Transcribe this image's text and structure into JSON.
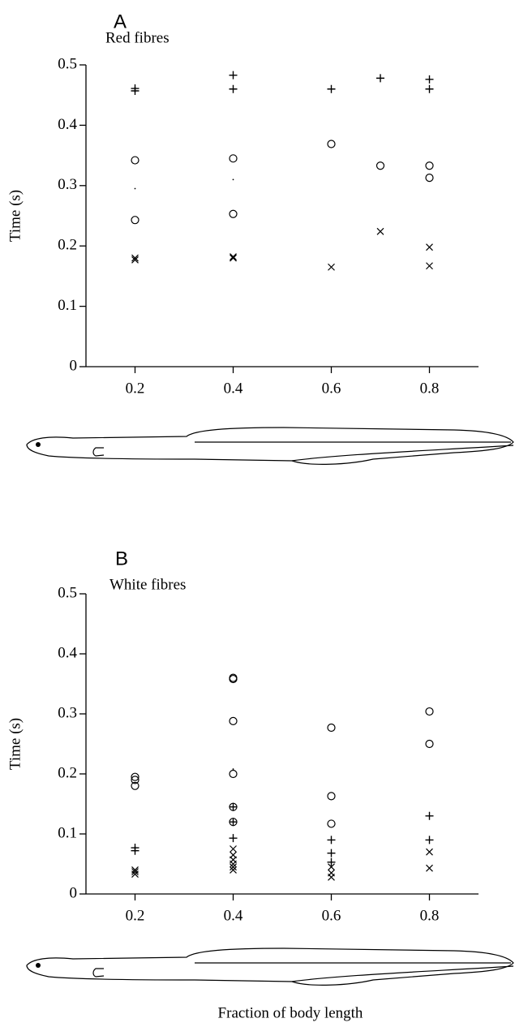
{
  "chart_data": [
    {
      "type": "scatter",
      "title": "A",
      "subtitle": "Red fibres",
      "y_label": "Time (s)",
      "xlim": [
        0.1,
        0.9
      ],
      "ylim": [
        0,
        0.5
      ],
      "xticks": [
        0.2,
        0.4,
        0.6,
        0.8
      ],
      "yticks": [
        0,
        0.1,
        0.2,
        0.3,
        0.4,
        0.5
      ],
      "series": [
        {
          "marker": "plus",
          "color": "#000000",
          "x": [
            0.2,
            0.2,
            0.4,
            0.4,
            0.6,
            0.7,
            0.8,
            0.8
          ],
          "values": [
            0.461,
            0.457,
            0.483,
            0.46,
            0.46,
            0.478,
            0.476,
            0.46
          ]
        },
        {
          "marker": "circle",
          "color": "#000000",
          "x": [
            0.2,
            0.2,
            0.4,
            0.4,
            0.6,
            0.7,
            0.8,
            0.8
          ],
          "values": [
            0.342,
            0.243,
            0.345,
            0.253,
            0.369,
            0.333,
            0.333,
            0.313
          ]
        },
        {
          "marker": "cross",
          "color": "#000000",
          "x": [
            0.2,
            0.2,
            0.4,
            0.4,
            0.6,
            0.7,
            0.8,
            0.8
          ],
          "values": [
            0.18,
            0.177,
            0.182,
            0.18,
            0.165,
            0.224,
            0.198,
            0.167
          ]
        },
        {
          "marker": "dot",
          "color": "#000000",
          "x": [
            0.2,
            0.4
          ],
          "values": [
            0.295,
            0.31
          ]
        }
      ]
    },
    {
      "type": "scatter",
      "title": "B",
      "subtitle": "White fibres",
      "y_label": "Time (s)",
      "x_label": "Fraction of body length",
      "xlim": [
        0.1,
        0.9
      ],
      "ylim": [
        0,
        0.5
      ],
      "xticks": [
        0.2,
        0.4,
        0.6,
        0.8
      ],
      "yticks": [
        0,
        0.1,
        0.2,
        0.3,
        0.4,
        0.5
      ],
      "series": [
        {
          "marker": "circle",
          "color": "#000000",
          "x": [
            0.2,
            0.2,
            0.2,
            0.4,
            0.4,
            0.4,
            0.4,
            0.4,
            0.4,
            0.6,
            0.6,
            0.6,
            0.8,
            0.8
          ],
          "values": [
            0.195,
            0.19,
            0.18,
            0.36,
            0.358,
            0.288,
            0.2,
            0.145,
            0.12,
            0.277,
            0.163,
            0.117,
            0.304,
            0.25
          ]
        },
        {
          "marker": "plus",
          "color": "#000000",
          "x": [
            0.2,
            0.2,
            0.4,
            0.4,
            0.4,
            0.6,
            0.6,
            0.6,
            0.8,
            0.8
          ],
          "values": [
            0.077,
            0.072,
            0.145,
            0.12,
            0.093,
            0.09,
            0.068,
            0.053,
            0.13,
            0.09
          ]
        },
        {
          "marker": "cross",
          "color": "#000000",
          "x": [
            0.2,
            0.2,
            0.2,
            0.4,
            0.4,
            0.4,
            0.4,
            0.4,
            0.4,
            0.6,
            0.6,
            0.6,
            0.8,
            0.8
          ],
          "values": [
            0.04,
            0.037,
            0.033,
            0.075,
            0.065,
            0.057,
            0.05,
            0.045,
            0.04,
            0.045,
            0.035,
            0.028,
            0.07,
            0.043
          ]
        },
        {
          "marker": "dot",
          "color": "#000000",
          "x": [
            0.4
          ],
          "values": [
            0.208
          ]
        }
      ]
    }
  ]
}
